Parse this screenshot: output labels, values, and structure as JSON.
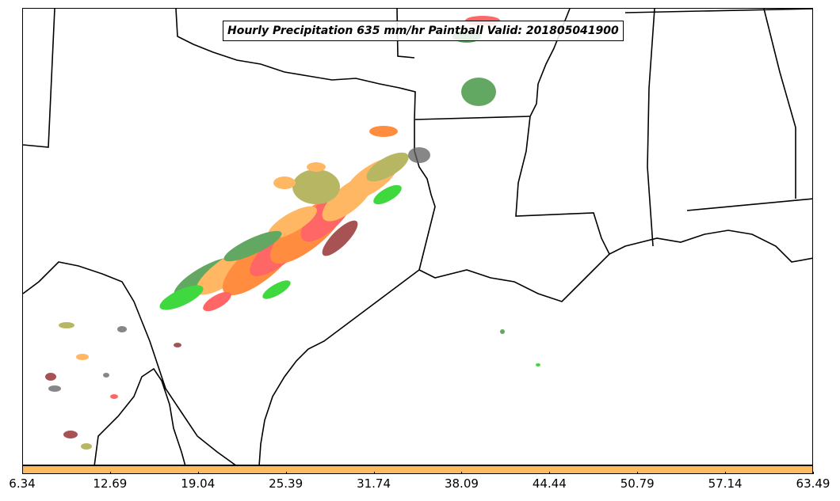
{
  "title": "Hourly Precipitation 635 mm/hr Paintball Valid: 201805041900",
  "colorbar": {
    "fill_color": "#fdbb5d",
    "ticks": [
      "6.34",
      "12.69",
      "19.04",
      "25.39",
      "31.74",
      "38.09",
      "44.44",
      "50.79",
      "57.14",
      "63.49"
    ]
  },
  "map": {
    "region": "Southern Plains / Gulf Coast",
    "state_lines_color": "#000000",
    "paintball_colors": [
      "#2e8b2e",
      "#00cc00",
      "#ff3333",
      "#ff6600",
      "#ffa030",
      "#8b1a1a",
      "#a0a030",
      "#606060"
    ]
  }
}
